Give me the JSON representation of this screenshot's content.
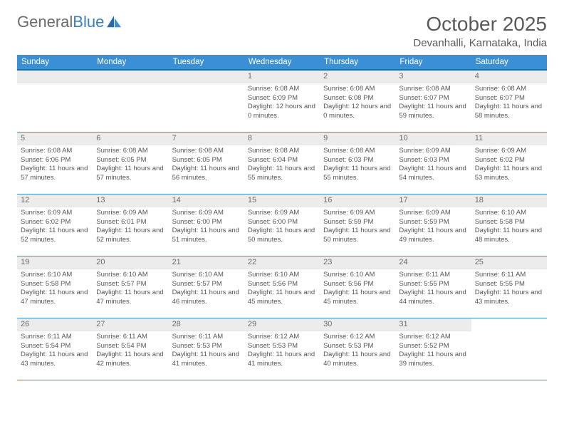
{
  "brand": {
    "name_a": "General",
    "name_b": "Blue"
  },
  "title": "October 2025",
  "location": "Devanhalli, Karnataka, India",
  "colors": {
    "header_bg": "#3b8fd4",
    "header_border": "#2a6aa0",
    "week_rule": "#3b8fd4",
    "daynum_bg": "#ececec",
    "text": "#555555",
    "title_text": "#5a5a5a",
    "logo_gray": "#6b6b6b",
    "logo_blue": "#3b7fbf"
  },
  "day_headers": [
    "Sunday",
    "Monday",
    "Tuesday",
    "Wednesday",
    "Thursday",
    "Friday",
    "Saturday"
  ],
  "weeks": [
    [
      null,
      null,
      null,
      {
        "n": "1",
        "sr": "6:08 AM",
        "ss": "6:09 PM",
        "dl": "12 hours and 0 minutes."
      },
      {
        "n": "2",
        "sr": "6:08 AM",
        "ss": "6:08 PM",
        "dl": "12 hours and 0 minutes."
      },
      {
        "n": "3",
        "sr": "6:08 AM",
        "ss": "6:07 PM",
        "dl": "11 hours and 59 minutes."
      },
      {
        "n": "4",
        "sr": "6:08 AM",
        "ss": "6:07 PM",
        "dl": "11 hours and 58 minutes."
      }
    ],
    [
      {
        "n": "5",
        "sr": "6:08 AM",
        "ss": "6:06 PM",
        "dl": "11 hours and 57 minutes."
      },
      {
        "n": "6",
        "sr": "6:08 AM",
        "ss": "6:05 PM",
        "dl": "11 hours and 57 minutes."
      },
      {
        "n": "7",
        "sr": "6:08 AM",
        "ss": "6:05 PM",
        "dl": "11 hours and 56 minutes."
      },
      {
        "n": "8",
        "sr": "6:08 AM",
        "ss": "6:04 PM",
        "dl": "11 hours and 55 minutes."
      },
      {
        "n": "9",
        "sr": "6:08 AM",
        "ss": "6:03 PM",
        "dl": "11 hours and 55 minutes."
      },
      {
        "n": "10",
        "sr": "6:09 AM",
        "ss": "6:03 PM",
        "dl": "11 hours and 54 minutes."
      },
      {
        "n": "11",
        "sr": "6:09 AM",
        "ss": "6:02 PM",
        "dl": "11 hours and 53 minutes."
      }
    ],
    [
      {
        "n": "12",
        "sr": "6:09 AM",
        "ss": "6:02 PM",
        "dl": "11 hours and 52 minutes."
      },
      {
        "n": "13",
        "sr": "6:09 AM",
        "ss": "6:01 PM",
        "dl": "11 hours and 52 minutes."
      },
      {
        "n": "14",
        "sr": "6:09 AM",
        "ss": "6:00 PM",
        "dl": "11 hours and 51 minutes."
      },
      {
        "n": "15",
        "sr": "6:09 AM",
        "ss": "6:00 PM",
        "dl": "11 hours and 50 minutes."
      },
      {
        "n": "16",
        "sr": "6:09 AM",
        "ss": "5:59 PM",
        "dl": "11 hours and 50 minutes."
      },
      {
        "n": "17",
        "sr": "6:09 AM",
        "ss": "5:59 PM",
        "dl": "11 hours and 49 minutes."
      },
      {
        "n": "18",
        "sr": "6:10 AM",
        "ss": "5:58 PM",
        "dl": "11 hours and 48 minutes."
      }
    ],
    [
      {
        "n": "19",
        "sr": "6:10 AM",
        "ss": "5:58 PM",
        "dl": "11 hours and 47 minutes."
      },
      {
        "n": "20",
        "sr": "6:10 AM",
        "ss": "5:57 PM",
        "dl": "11 hours and 47 minutes."
      },
      {
        "n": "21",
        "sr": "6:10 AM",
        "ss": "5:57 PM",
        "dl": "11 hours and 46 minutes."
      },
      {
        "n": "22",
        "sr": "6:10 AM",
        "ss": "5:56 PM",
        "dl": "11 hours and 45 minutes."
      },
      {
        "n": "23",
        "sr": "6:10 AM",
        "ss": "5:56 PM",
        "dl": "11 hours and 45 minutes."
      },
      {
        "n": "24",
        "sr": "6:11 AM",
        "ss": "5:55 PM",
        "dl": "11 hours and 44 minutes."
      },
      {
        "n": "25",
        "sr": "6:11 AM",
        "ss": "5:55 PM",
        "dl": "11 hours and 43 minutes."
      }
    ],
    [
      {
        "n": "26",
        "sr": "6:11 AM",
        "ss": "5:54 PM",
        "dl": "11 hours and 43 minutes."
      },
      {
        "n": "27",
        "sr": "6:11 AM",
        "ss": "5:54 PM",
        "dl": "11 hours and 42 minutes."
      },
      {
        "n": "28",
        "sr": "6:11 AM",
        "ss": "5:53 PM",
        "dl": "11 hours and 41 minutes."
      },
      {
        "n": "29",
        "sr": "6:12 AM",
        "ss": "5:53 PM",
        "dl": "11 hours and 41 minutes."
      },
      {
        "n": "30",
        "sr": "6:12 AM",
        "ss": "5:53 PM",
        "dl": "11 hours and 40 minutes."
      },
      {
        "n": "31",
        "sr": "6:12 AM",
        "ss": "5:52 PM",
        "dl": "11 hours and 39 minutes."
      },
      null
    ]
  ],
  "labels": {
    "sunrise": "Sunrise:",
    "sunset": "Sunset:",
    "daylight": "Daylight:"
  }
}
